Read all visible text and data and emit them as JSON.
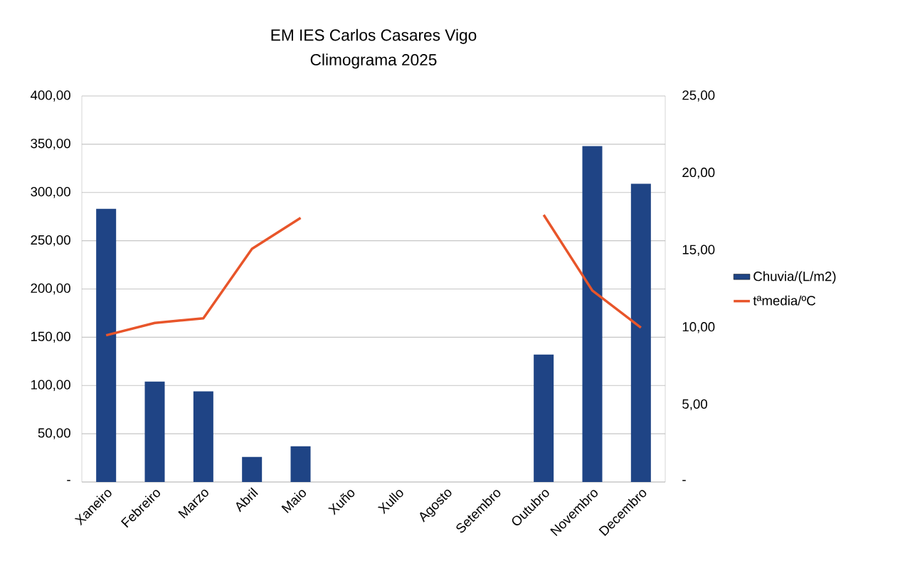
{
  "chart_data": {
    "type": "bar",
    "title": "EM IES Carlos Casares Vigo",
    "subtitle": "Climograma 2025",
    "categories": [
      "Xaneiro",
      "Febreiro",
      "Marzo",
      "Abril",
      "Maio",
      "Xuño",
      "Xullo",
      "Agosto",
      "Setembro",
      "Outubro",
      "Novembro",
      "Decembro"
    ],
    "series": [
      {
        "name": "Chuvia/(L/m2)",
        "color": "#1f4485",
        "values": [
          283,
          104,
          94,
          26,
          37,
          null,
          null,
          null,
          null,
          132,
          348,
          309
        ]
      },
      {
        "name": "tªmedia/ºC",
        "type": "line",
        "axis": "y2",
        "color": "#e8552a",
        "values": [
          9.5,
          10.3,
          10.6,
          15.1,
          17.1,
          null,
          null,
          null,
          null,
          17.3,
          12.4,
          10.0
        ]
      }
    ],
    "ylim": [
      0,
      400
    ],
    "yticks": [
      {
        "value": 0,
        "label": "-"
      },
      {
        "value": 50,
        "label": "50,00"
      },
      {
        "value": 100,
        "label": "100,00"
      },
      {
        "value": 150,
        "label": "150,00"
      },
      {
        "value": 200,
        "label": "200,00"
      },
      {
        "value": 250,
        "label": "250,00"
      },
      {
        "value": 300,
        "label": "300,00"
      },
      {
        "value": 350,
        "label": "350,00"
      },
      {
        "value": 400,
        "label": "400,00"
      }
    ],
    "y2lim": [
      0,
      25
    ],
    "y2ticks": [
      {
        "value": 0,
        "label": "-"
      },
      {
        "value": 5,
        "label": "5,00"
      },
      {
        "value": 10,
        "label": "10,00"
      },
      {
        "value": 15,
        "label": "15,00"
      },
      {
        "value": 20,
        "label": "20,00"
      },
      {
        "value": 25,
        "label": "25,00"
      }
    ],
    "grid": "y",
    "legend": "right"
  }
}
